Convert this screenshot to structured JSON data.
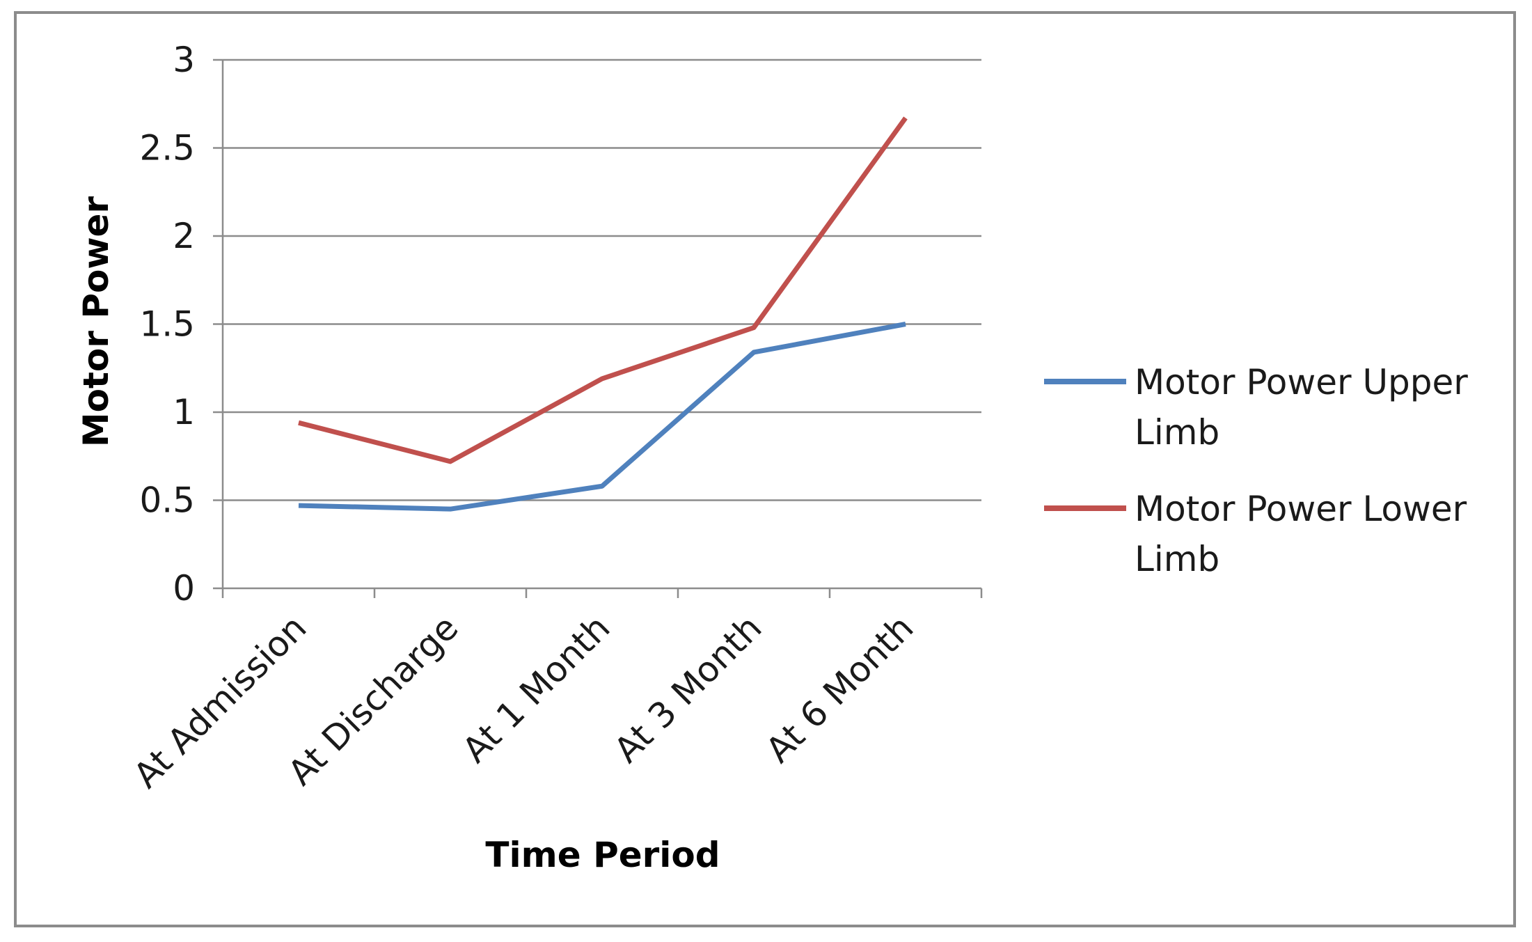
{
  "chart_data": {
    "type": "line",
    "title": "",
    "xlabel": "Time Period",
    "ylabel": "Motor Power",
    "categories": [
      "At Admission",
      "At Discharge",
      "At 1 Month",
      "At 3 Month",
      "At 6 Month"
    ],
    "ylim": [
      0,
      3
    ],
    "yticks": [
      "0",
      "0.5",
      "1",
      "1.5",
      "2",
      "2.5",
      "3"
    ],
    "ytick_values": [
      0,
      0.5,
      1,
      1.5,
      2,
      2.5,
      3
    ],
    "grid": true,
    "legend_position": "right",
    "series": [
      {
        "name": "Motor Power Upper Limb",
        "name_lines": [
          "Motor Power Upper",
          "Limb"
        ],
        "color": "#4F81BD",
        "values": [
          0.47,
          0.45,
          0.58,
          1.34,
          1.5
        ]
      },
      {
        "name": "Motor Power Lower Limb",
        "name_lines": [
          "Motor Power Lower",
          "Limb"
        ],
        "color": "#C0504D",
        "values": [
          0.94,
          0.72,
          1.19,
          1.48,
          2.67
        ]
      }
    ],
    "colors": {
      "gridline": "#8c8c8c",
      "frame": "#8c8c8c",
      "text": "#1a1a1a"
    }
  }
}
